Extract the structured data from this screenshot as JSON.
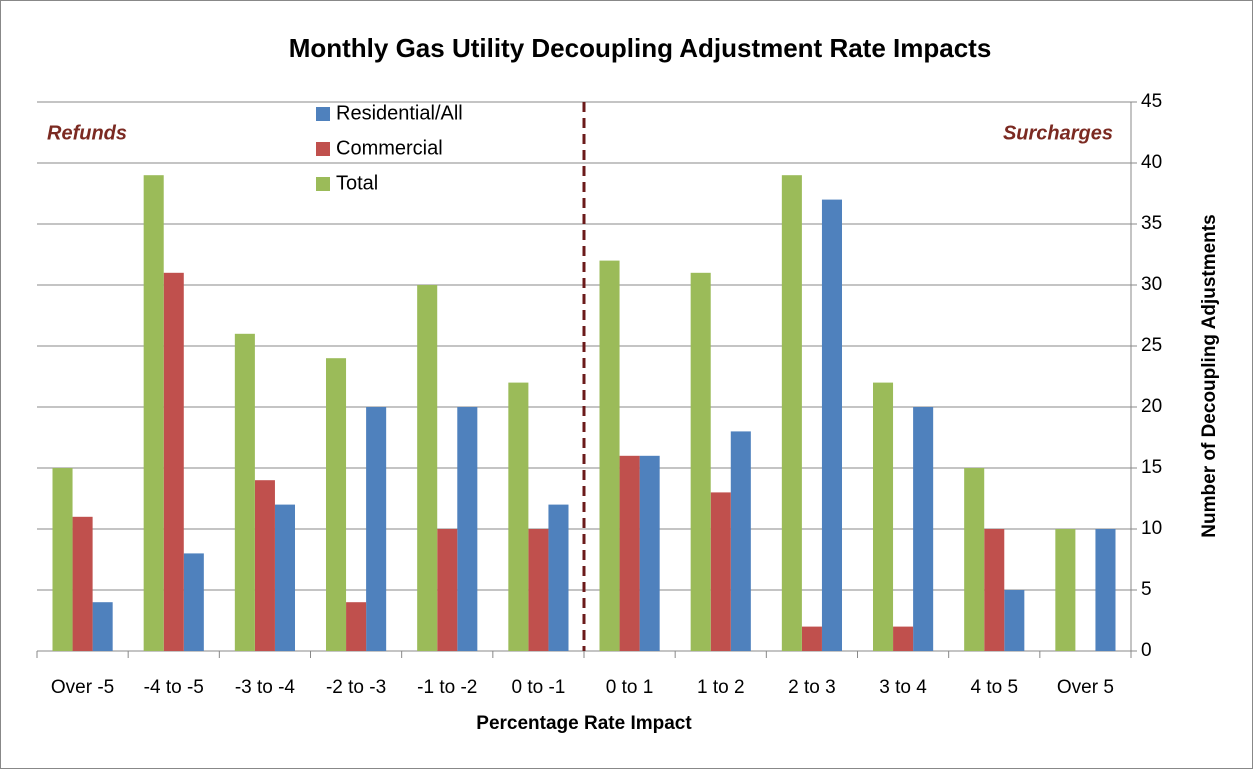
{
  "chart_data": {
    "type": "bar",
    "title": "Monthly Gas Utility Decoupling Adjustment Rate Impacts",
    "x_label": "Percentage Rate Impact",
    "y_label": "Number of Decoupling Adjustments",
    "annotations": [
      "Refunds",
      "Surcharges"
    ],
    "categories": [
      "Over -5",
      "-4 to -5",
      "-3 to -4",
      "-2 to -3",
      "-1 to -2",
      "0 to -1",
      "0 to 1",
      "1 to 2",
      "2 to 3",
      "3 to 4",
      "4 to 5",
      "Over 5"
    ],
    "series": [
      {
        "name": "Residential/All",
        "color": "#4f81bd",
        "values": [
          4,
          8,
          12,
          20,
          20,
          12,
          16,
          18,
          37,
          20,
          5,
          10
        ]
      },
      {
        "name": "Commercial",
        "color": "#c0504d",
        "values": [
          11,
          31,
          14,
          4,
          10,
          10,
          16,
          13,
          2,
          2,
          10,
          0
        ]
      },
      {
        "name": "Total",
        "color": "#9bbb59",
        "values": [
          15,
          39,
          26,
          24,
          30,
          22,
          32,
          31,
          39,
          22,
          15,
          10
        ]
      }
    ],
    "ylim": [
      0,
      45
    ],
    "yticks": [
      0,
      5,
      10,
      15,
      20,
      25,
      30,
      35,
      40,
      45
    ],
    "grid": true
  }
}
